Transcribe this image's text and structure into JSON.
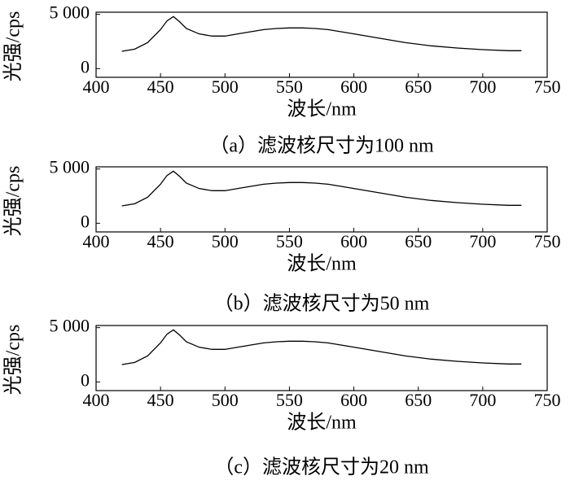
{
  "chart_data": [
    {
      "type": "line",
      "caption": "（a）滤波核尺寸为100 nm",
      "xlabel": "波长/nm",
      "ylabel": "光强/cps",
      "color": "#000000",
      "x": [
        420,
        430,
        440,
        450,
        455,
        460,
        465,
        470,
        480,
        490,
        500,
        510,
        520,
        530,
        540,
        550,
        560,
        570,
        580,
        590,
        600,
        620,
        640,
        660,
        680,
        700,
        720,
        730
      ],
      "values": [
        1600,
        1800,
        2400,
        3600,
        4400,
        4800,
        4300,
        3700,
        3200,
        3000,
        3000,
        3200,
        3400,
        3600,
        3700,
        3750,
        3750,
        3700,
        3600,
        3400,
        3200,
        2800,
        2400,
        2100,
        1900,
        1750,
        1650,
        1650
      ],
      "xlim": [
        400,
        750
      ],
      "xticks": [
        400,
        450,
        500,
        550,
        600,
        650,
        700,
        750
      ],
      "ylim": [
        -800,
        5200
      ],
      "yticks": [
        0,
        {
          "value": 5000,
          "label": "5 000"
        }
      ]
    },
    {
      "type": "line",
      "caption": "（b）滤波核尺寸为50 nm",
      "xlabel": "波长/nm",
      "ylabel": "光强/cps",
      "color": "#000000",
      "x": [
        420,
        430,
        440,
        450,
        455,
        460,
        465,
        470,
        480,
        490,
        500,
        510,
        520,
        530,
        540,
        550,
        560,
        570,
        580,
        590,
        600,
        620,
        640,
        660,
        680,
        700,
        720,
        730
      ],
      "values": [
        1600,
        1800,
        2400,
        3600,
        4400,
        4800,
        4300,
        3700,
        3200,
        3000,
        3000,
        3200,
        3400,
        3600,
        3700,
        3750,
        3750,
        3700,
        3600,
        3400,
        3200,
        2800,
        2400,
        2100,
        1900,
        1750,
        1650,
        1650
      ],
      "xlim": [
        400,
        750
      ],
      "xticks": [
        400,
        450,
        500,
        550,
        600,
        650,
        700,
        750
      ],
      "ylim": [
        -800,
        5200
      ],
      "yticks": [
        0,
        {
          "value": 5000,
          "label": "5 000"
        }
      ]
    },
    {
      "type": "line",
      "caption": "（c）滤波核尺寸为20 nm",
      "xlabel": "波长/nm",
      "ylabel": "光强/cps",
      "color": "#000000",
      "x": [
        420,
        430,
        440,
        450,
        455,
        460,
        465,
        470,
        480,
        490,
        500,
        510,
        520,
        530,
        540,
        550,
        560,
        570,
        580,
        590,
        600,
        620,
        640,
        660,
        680,
        700,
        720,
        730
      ],
      "values": [
        1600,
        1800,
        2400,
        3600,
        4400,
        4800,
        4300,
        3700,
        3200,
        3000,
        3000,
        3200,
        3400,
        3600,
        3700,
        3750,
        3750,
        3700,
        3600,
        3400,
        3200,
        2800,
        2400,
        2100,
        1900,
        1750,
        1650,
        1650
      ],
      "xlim": [
        400,
        750
      ],
      "xticks": [
        400,
        450,
        500,
        550,
        600,
        650,
        700,
        750
      ],
      "ylim": [
        -800,
        5200
      ],
      "yticks": [
        0,
        {
          "value": 5000,
          "label": "5 000"
        }
      ]
    }
  ]
}
